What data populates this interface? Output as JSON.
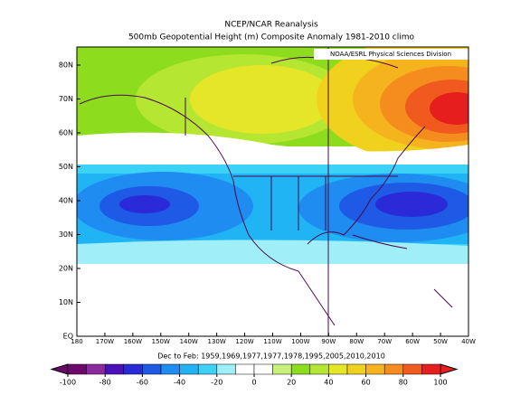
{
  "title": "NCEP/NCAR Reanalysis",
  "subtitle": "500mb Geopotential Height (m) Composite Anomaly 1981-2010 climo",
  "credit": "NOAA/ESRL Physical Sciences Division",
  "latitude_labels": [
    "80N",
    "70N",
    "60N",
    "50N",
    "40N",
    "30N",
    "20N",
    "10N",
    "EQ"
  ],
  "longitude_labels": [
    "180",
    "170W",
    "160W",
    "150W",
    "140W",
    "130W",
    "120W",
    "110W",
    "100W",
    "90W",
    "80W",
    "70W",
    "60W",
    "50W",
    "40W"
  ],
  "period": "Dec to Feb: 1959,1969,1977,1977,1978,1995,2005,2010,2010",
  "colorbar": {
    "ticks": [
      -100,
      -80,
      -60,
      -40,
      -20,
      0,
      20,
      40,
      60,
      80,
      100
    ],
    "colors": [
      "#6b0a6b",
      "#8a2a9c",
      "#4b10b8",
      "#2a2ad8",
      "#1e5ae6",
      "#1e8cf0",
      "#20b4f5",
      "#3cd2f5",
      "#a0eef8",
      "#ffffff",
      "#ffffff",
      "#c8f07a",
      "#8edc1e",
      "#b4e632",
      "#e6e628",
      "#f0d21e",
      "#f5b41e",
      "#f58c1e",
      "#f05a1e",
      "#e61e1e"
    ]
  }
}
